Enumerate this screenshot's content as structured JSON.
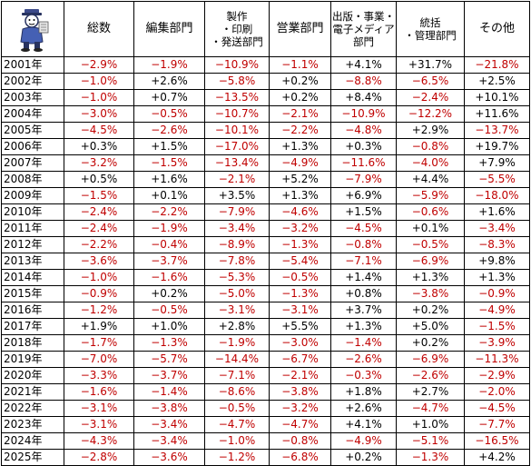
{
  "headers": [
    [
      "総数"
    ],
    [
      "編集部門"
    ],
    [
      "製作",
      "・印刷",
      "・発送部門"
    ],
    [
      "営業部門"
    ],
    [
      "出版・事業・",
      "電子メディア",
      "部門"
    ],
    [
      "統括",
      "・管理部門"
    ],
    [
      "その他"
    ]
  ],
  "rows": [
    {
      "year": "2001年",
      "values": [
        "−2.9%",
        "−1.9%",
        "−10.9%",
        "−1.1%",
        "+4.1%",
        "+31.7%",
        "−21.8%"
      ]
    },
    {
      "year": "2002年",
      "values": [
        "−1.0%",
        "+2.6%",
        "−5.8%",
        "+0.2%",
        "−8.8%",
        "−6.5%",
        "+2.5%"
      ]
    },
    {
      "year": "2003年",
      "values": [
        "−1.0%",
        "+0.7%",
        "−13.5%",
        "+0.2%",
        "+8.4%",
        "−2.4%",
        "+10.1%"
      ]
    },
    {
      "year": "2004年",
      "values": [
        "−3.0%",
        "−0.5%",
        "−10.7%",
        "−2.1%",
        "−10.9%",
        "−12.2%",
        "+11.6%"
      ]
    },
    {
      "year": "2005年",
      "values": [
        "−4.5%",
        "−2.6%",
        "−10.1%",
        "−2.2%",
        "−4.8%",
        "+2.9%",
        "−13.7%"
      ]
    },
    {
      "year": "2006年",
      "values": [
        "+0.3%",
        "+1.5%",
        "−17.0%",
        "+1.3%",
        "+0.3%",
        "−0.8%",
        "+19.7%"
      ]
    },
    {
      "year": "2007年",
      "values": [
        "−3.2%",
        "−1.5%",
        "−13.4%",
        "−4.9%",
        "−11.6%",
        "−4.0%",
        "+7.9%"
      ]
    },
    {
      "year": "2008年",
      "values": [
        "+0.5%",
        "+1.6%",
        "−2.1%",
        "+5.2%",
        "−7.9%",
        "+4.4%",
        "−5.5%"
      ]
    },
    {
      "year": "2009年",
      "values": [
        "−1.5%",
        "+0.1%",
        "+3.5%",
        "+1.3%",
        "+6.9%",
        "−5.9%",
        "−18.0%"
      ]
    },
    {
      "year": "2010年",
      "values": [
        "−2.4%",
        "−2.2%",
        "−7.9%",
        "−4.6%",
        "+1.5%",
        "−0.6%",
        "+1.6%"
      ]
    },
    {
      "year": "2011年",
      "values": [
        "−2.4%",
        "−1.9%",
        "−3.4%",
        "−3.2%",
        "−4.5%",
        "+0.1%",
        "−3.4%"
      ]
    },
    {
      "year": "2012年",
      "values": [
        "−2.2%",
        "−0.4%",
        "−8.9%",
        "−1.3%",
        "−0.8%",
        "−0.5%",
        "−8.3%"
      ]
    },
    {
      "year": "2013年",
      "values": [
        "−3.6%",
        "−3.7%",
        "−7.8%",
        "−5.4%",
        "−7.1%",
        "−6.9%",
        "+9.8%"
      ]
    },
    {
      "year": "2014年",
      "values": [
        "−1.0%",
        "−1.6%",
        "−5.3%",
        "−0.5%",
        "+1.4%",
        "+1.3%",
        "+1.3%"
      ]
    },
    {
      "year": "2015年",
      "values": [
        "−0.9%",
        "+0.2%",
        "−5.0%",
        "−1.3%",
        "+0.8%",
        "−3.8%",
        "−0.9%"
      ]
    },
    {
      "year": "2016年",
      "values": [
        "−1.2%",
        "−0.5%",
        "−3.1%",
        "−3.1%",
        "+3.7%",
        "+0.2%",
        "−4.9%"
      ]
    },
    {
      "year": "2017年",
      "values": [
        "+1.9%",
        "+1.0%",
        "+2.8%",
        "+5.5%",
        "+1.3%",
        "+5.0%",
        "−1.5%"
      ]
    },
    {
      "year": "2018年",
      "values": [
        "−1.7%",
        "−1.3%",
        "−1.9%",
        "−3.0%",
        "−1.4%",
        "+0.2%",
        "−3.9%"
      ]
    },
    {
      "year": "2019年",
      "values": [
        "−7.0%",
        "−5.7%",
        "−14.4%",
        "−6.7%",
        "−2.6%",
        "−6.9%",
        "−11.3%"
      ]
    },
    {
      "year": "2020年",
      "values": [
        "−3.3%",
        "−3.7%",
        "−7.1%",
        "−2.1%",
        "−0.3%",
        "−2.6%",
        "−2.9%"
      ]
    },
    {
      "year": "2021年",
      "values": [
        "−1.6%",
        "−1.4%",
        "−8.6%",
        "−3.8%",
        "+1.8%",
        "+2.7%",
        "−2.0%"
      ]
    },
    {
      "year": "2022年",
      "values": [
        "−3.1%",
        "−3.8%",
        "−0.5%",
        "−3.2%",
        "+2.6%",
        "−4.7%",
        "−4.5%"
      ]
    },
    {
      "year": "2023年",
      "values": [
        "−3.1%",
        "−3.4%",
        "−4.7%",
        "−4.7%",
        "+4.1%",
        "+1.0%",
        "−7.7%"
      ]
    },
    {
      "year": "2024年",
      "values": [
        "−4.3%",
        "−3.4%",
        "−1.0%",
        "−0.8%",
        "−4.9%",
        "−5.1%",
        "−16.5%"
      ]
    },
    {
      "year": "2025年",
      "values": [
        "−2.8%",
        "−3.6%",
        "−1.2%",
        "−6.8%",
        "+0.2%",
        "−1.3%",
        "+4.2%"
      ]
    }
  ],
  "icons": {
    "corner": "mascot-icon"
  },
  "colors": {
    "negative": "#c00000",
    "positive": "#000000"
  }
}
